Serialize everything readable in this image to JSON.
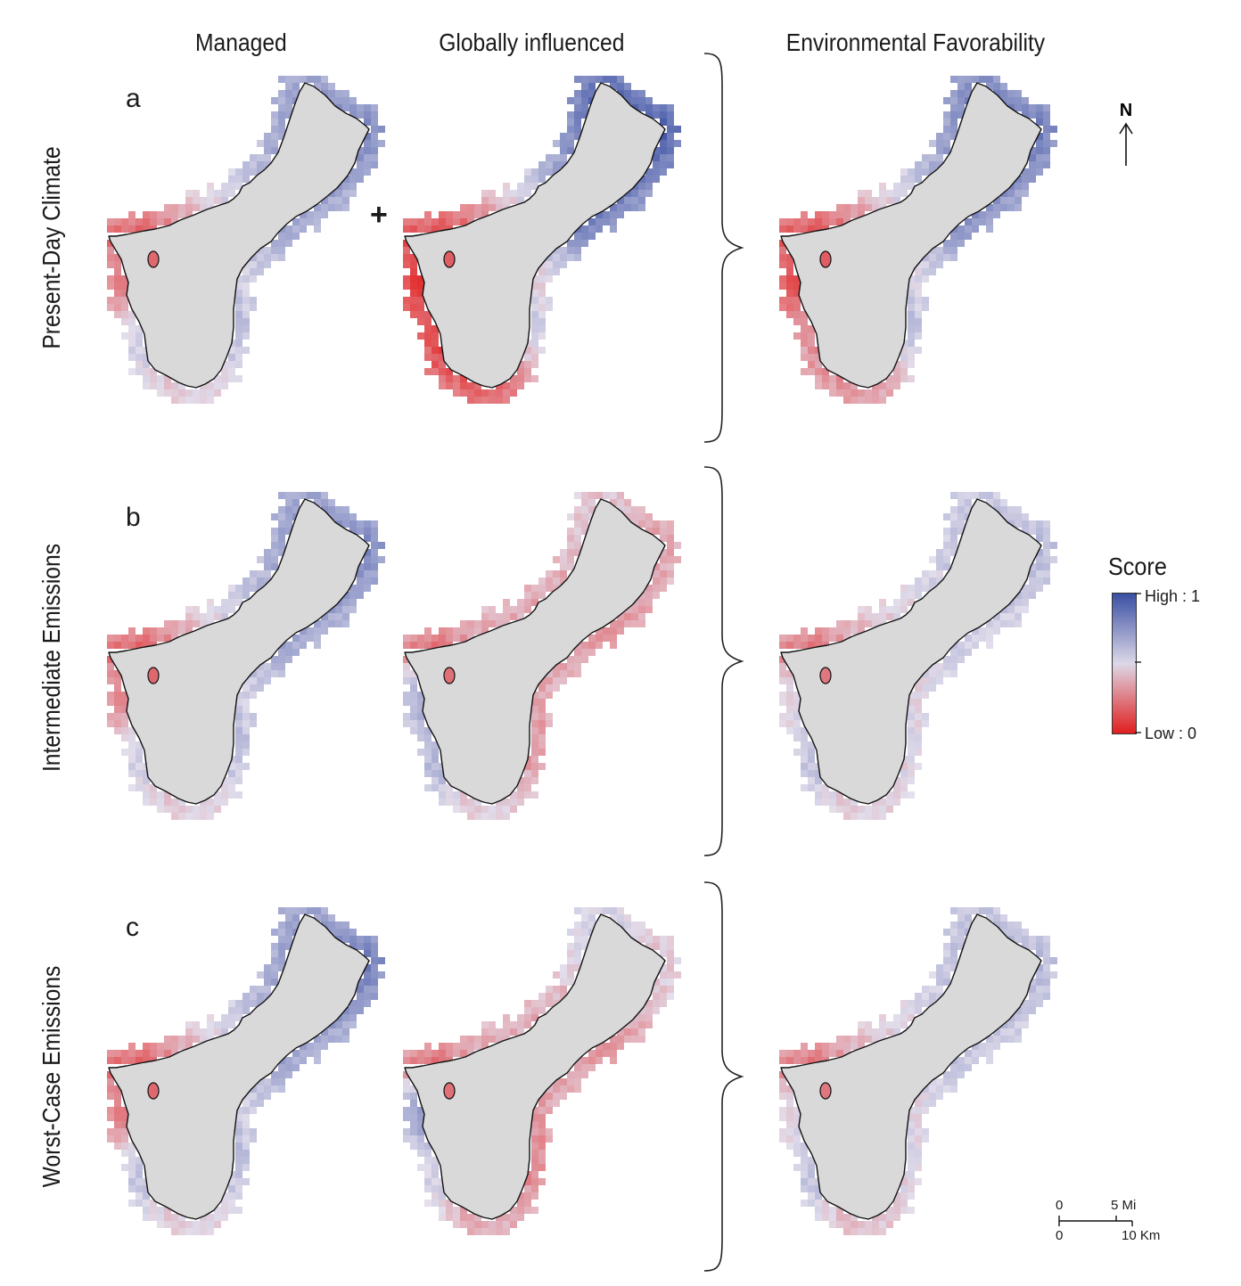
{
  "columns": [
    "Managed",
    "Globally influenced",
    "Environmental Favorability"
  ],
  "rows": [
    {
      "letter": "a",
      "label": "Present-Day Climate"
    },
    {
      "letter": "b",
      "label": "Intermediate Emissions"
    },
    {
      "letter": "c",
      "label": "Worst-Case Emissions"
    }
  ],
  "plus_sign": "+",
  "legend": {
    "title": "Score",
    "high_label": "High : 1",
    "low_label": "Low : 0",
    "color_high": "#3a4fa3",
    "color_mid": "#ddd8e8",
    "color_low": "#e01e1e"
  },
  "north_arrow": {
    "label": "N"
  },
  "scale_bar": {
    "mi_zero": "0",
    "mi_label": "5 Mi",
    "km_zero": "0",
    "km_label": "10 Km"
  },
  "island_fill": "#d9d9d9",
  "panel_scores": {
    "present_managed": {
      "nw": 0.18,
      "w": 0.25,
      "sw": 0.55,
      "s": 0.45,
      "se": 0.6,
      "e": 0.7,
      "ne": 0.8,
      "n": 0.72
    },
    "present_global": {
      "nw": 0.15,
      "w": 0.05,
      "sw": 0.1,
      "s": 0.15,
      "se": 0.55,
      "e": 0.85,
      "ne": 0.95,
      "n": 0.9
    },
    "present_favorability": {
      "nw": 0.15,
      "w": 0.12,
      "sw": 0.3,
      "s": 0.3,
      "se": 0.6,
      "e": 0.78,
      "ne": 0.85,
      "n": 0.8
    },
    "intermediate_managed": {
      "nw": 0.18,
      "w": 0.28,
      "sw": 0.55,
      "s": 0.45,
      "se": 0.6,
      "e": 0.7,
      "ne": 0.8,
      "n": 0.72
    },
    "intermediate_global": {
      "nw": 0.2,
      "w": 0.68,
      "sw": 0.65,
      "s": 0.45,
      "se": 0.3,
      "e": 0.3,
      "ne": 0.35,
      "n": 0.45
    },
    "intermediate_favorability": {
      "nw": 0.22,
      "w": 0.5,
      "sw": 0.6,
      "s": 0.45,
      "se": 0.5,
      "e": 0.55,
      "ne": 0.62,
      "n": 0.58
    },
    "worst_managed": {
      "nw": 0.18,
      "w": 0.25,
      "sw": 0.6,
      "s": 0.45,
      "se": 0.6,
      "e": 0.7,
      "ne": 0.85,
      "n": 0.72
    },
    "worst_global": {
      "nw": 0.2,
      "w": 0.75,
      "sw": 0.55,
      "s": 0.35,
      "se": 0.25,
      "e": 0.3,
      "ne": 0.45,
      "n": 0.55
    },
    "worst_favorability": {
      "nw": 0.22,
      "w": 0.5,
      "sw": 0.6,
      "s": 0.4,
      "se": 0.5,
      "e": 0.58,
      "ne": 0.62,
      "n": 0.6
    }
  }
}
